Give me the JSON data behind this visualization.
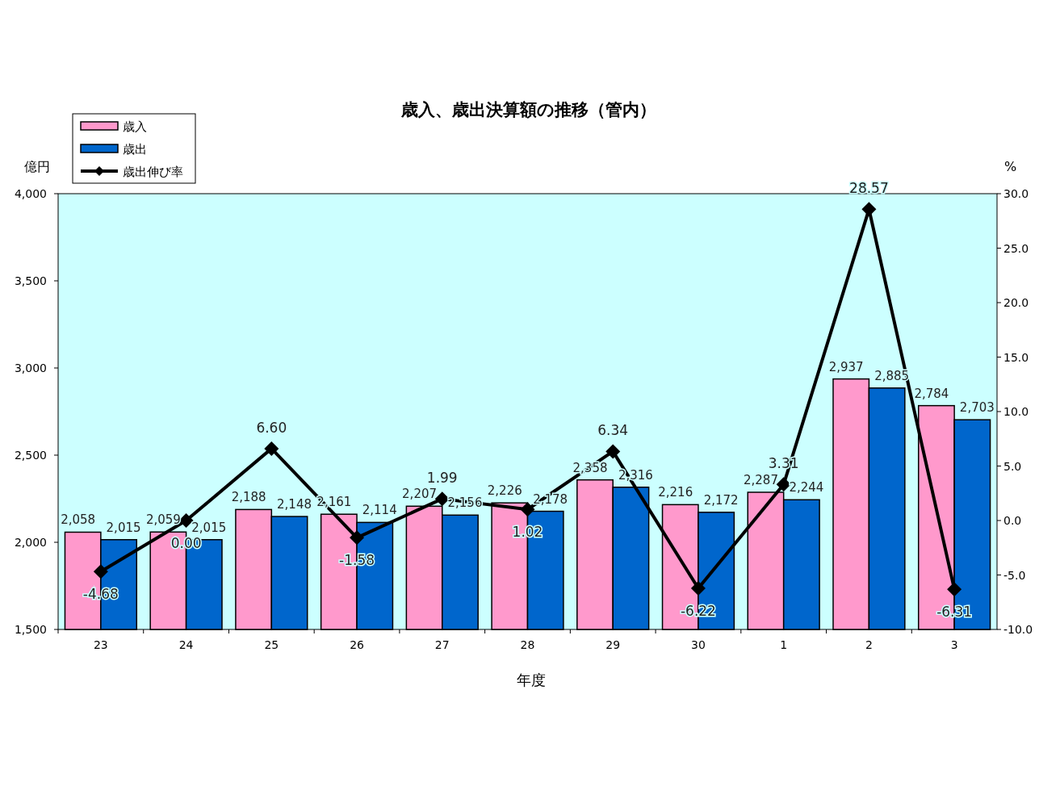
{
  "chart_data": {
    "type": "bar",
    "title": "歳入、歳出決算額の推移（管内）",
    "xlabel": "年度",
    "ylabel": "億円",
    "y2label": "%",
    "categories": [
      "23",
      "24",
      "25",
      "26",
      "27",
      "28",
      "29",
      "30",
      "1",
      "2",
      "3"
    ],
    "series": [
      {
        "name": "歳入",
        "color": "#ff99cc",
        "values": [
          2058,
          2059,
          2188,
          2161,
          2207,
          2226,
          2358,
          2216,
          2287,
          2937,
          2784
        ],
        "value_labels": [
          "2,058",
          "2,059",
          "2,188",
          "2,161",
          "2,207",
          "2,226",
          "2,358",
          "2,216",
          "2,287",
          "2,937",
          "2,784"
        ]
      },
      {
        "name": "歳出",
        "color": "#0066cc",
        "values": [
          2015,
          2015,
          2148,
          2114,
          2156,
          2178,
          2316,
          2172,
          2244,
          2885,
          2703
        ],
        "value_labels": [
          "2,015",
          "2,015",
          "2,148",
          "2,114",
          "2,156",
          "2,178",
          "2,316",
          "2,172",
          "2,244",
          "2,885",
          "2,703"
        ]
      },
      {
        "name": "歳出伸び率",
        "type": "line",
        "axis": "y2",
        "color": "#000000",
        "marker": "diamond",
        "values": [
          -4.68,
          0.0,
          6.6,
          -1.58,
          1.99,
          1.02,
          6.34,
          -6.22,
          3.31,
          28.57,
          -6.31
        ],
        "value_labels": [
          "-4.68",
          "0.00",
          "6.60",
          "-1.58",
          "1.99",
          "1.02",
          "6.34",
          "-6.22",
          "3.31",
          "28.57",
          "-6.31"
        ]
      }
    ],
    "ylim": [
      1500,
      4000
    ],
    "yticks": [
      {
        "value": 1500,
        "label": "1,500"
      },
      {
        "value": 2000,
        "label": "2,000"
      },
      {
        "value": 2500,
        "label": "2,500"
      },
      {
        "value": 3000,
        "label": "3,000"
      },
      {
        "value": 3500,
        "label": "3,500"
      },
      {
        "value": 4000,
        "label": "4,000"
      }
    ],
    "y2lim": [
      -10,
      30
    ],
    "y2ticks": [
      {
        "value": -10,
        "label": "-10.0"
      },
      {
        "value": -5,
        "label": "-5.0"
      },
      {
        "value": 0,
        "label": "0.0"
      },
      {
        "value": 5,
        "label": "5.0"
      },
      {
        "value": 10,
        "label": "10.0"
      },
      {
        "value": 15,
        "label": "15.0"
      },
      {
        "value": 20,
        "label": "20.0"
      },
      {
        "value": 25,
        "label": "25.0"
      },
      {
        "value": 30,
        "label": "30.0"
      }
    ],
    "grid": false,
    "legend": "top left"
  }
}
